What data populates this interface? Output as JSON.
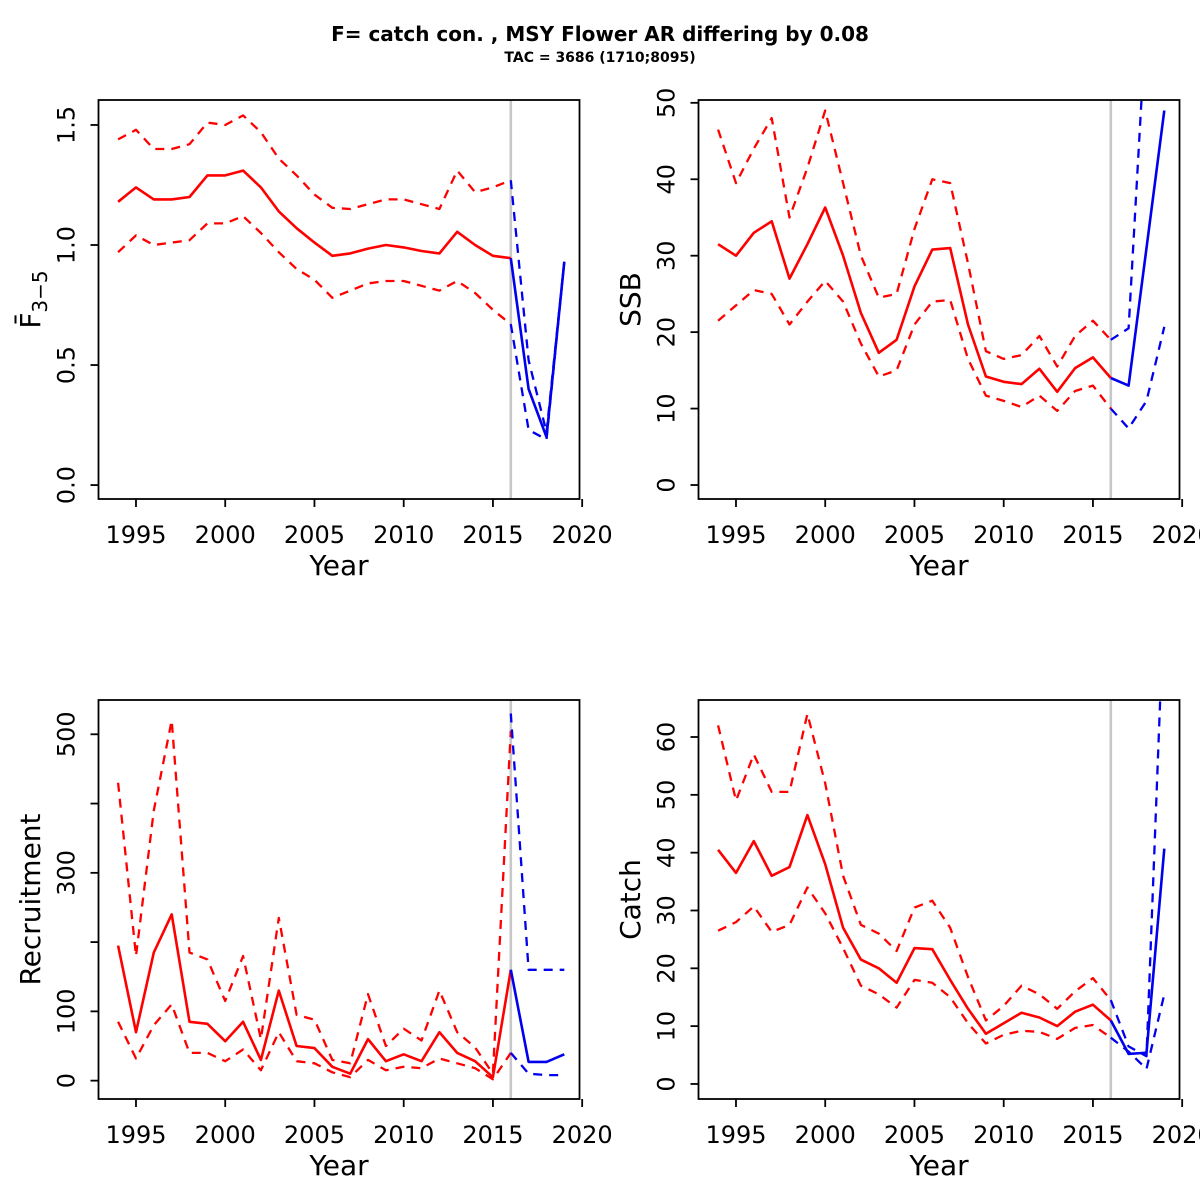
{
  "header": {
    "title": "F= catch con. , MSY Flower AR differing by 0.08",
    "subtitle": "TAC = 3686 (1710;8095)"
  },
  "colors": {
    "historical": "#FF0000",
    "forecast": "#0000EE",
    "divider": "#C8C8C8",
    "axis": "#000000"
  },
  "forecast_divider_year": 2016,
  "years": {
    "hist": [
      1994,
      1995,
      1996,
      1997,
      1998,
      1999,
      2000,
      2001,
      2002,
      2003,
      2004,
      2005,
      2006,
      2007,
      2008,
      2009,
      2010,
      2011,
      2012,
      2013,
      2014,
      2015,
      2016
    ],
    "forecast": [
      2016,
      2017,
      2018,
      2019
    ]
  },
  "chart_data": [
    {
      "key": "f-bar-3-5",
      "type": "line",
      "xlabel": "Year",
      "ylabel": {
        "text": "F",
        "overbar": true,
        "sub": "3−5"
      },
      "xlim": [
        1992.9,
        2019.85
      ],
      "ylim": [
        -0.058,
        1.604
      ],
      "grid": false,
      "xticks": [
        {
          "v": 1995,
          "l": "1995"
        },
        {
          "v": 2000,
          "l": "2000"
        },
        {
          "v": 2005,
          "l": "2005"
        },
        {
          "v": 2010,
          "l": "2010"
        },
        {
          "v": 2015,
          "l": "2015"
        },
        {
          "v": 2020,
          "l": "2020"
        }
      ],
      "yticks": [
        {
          "v": 0,
          "l": "0.0"
        },
        {
          "v": 0.5,
          "l": "0.5"
        },
        {
          "v": 1.0,
          "l": "1.0"
        },
        {
          "v": 1.5,
          "l": "1.5"
        }
      ],
      "series": [
        {
          "name": "historical-upper-ci",
          "period": "hist",
          "dash": true,
          "color": "historical",
          "values": [
            1.44,
            1.48,
            1.4,
            1.4,
            1.42,
            1.51,
            1.5,
            1.54,
            1.47,
            1.36,
            1.29,
            1.21,
            1.155,
            1.15,
            1.17,
            1.19,
            1.19,
            1.17,
            1.15,
            1.31,
            1.22,
            1.24,
            1.27
          ]
        },
        {
          "name": "historical-lower-ci",
          "period": "hist",
          "dash": true,
          "color": "historical",
          "values": [
            0.97,
            1.04,
            1.0,
            1.01,
            1.02,
            1.09,
            1.09,
            1.12,
            1.05,
            0.97,
            0.9,
            0.855,
            0.78,
            0.81,
            0.84,
            0.85,
            0.85,
            0.83,
            0.81,
            0.85,
            0.8,
            0.73,
            0.67
          ]
        },
        {
          "name": "historical-median",
          "period": "hist",
          "dash": false,
          "color": "historical",
          "values": [
            1.18,
            1.24,
            1.19,
            1.19,
            1.2,
            1.29,
            1.29,
            1.31,
            1.24,
            1.14,
            1.07,
            1.01,
            0.955,
            0.965,
            0.985,
            1.0,
            0.99,
            0.975,
            0.965,
            1.055,
            1.0,
            0.955,
            0.945
          ]
        },
        {
          "name": "forecast-upper-ci",
          "period": "forecast",
          "dash": true,
          "color": "forecast",
          "values": [
            1.27,
            0.52,
            0.22,
            0.93
          ]
        },
        {
          "name": "forecast-lower-ci",
          "period": "forecast",
          "dash": true,
          "color": "forecast",
          "values": [
            0.67,
            0.23,
            0.19,
            0.93
          ]
        },
        {
          "name": "forecast-median",
          "period": "forecast",
          "dash": false,
          "color": "forecast",
          "values": [
            0.945,
            0.4,
            0.2,
            0.93
          ]
        }
      ]
    },
    {
      "key": "ssb",
      "type": "line",
      "xlabel": "Year",
      "ylabel": {
        "text": "SSB",
        "overbar": false,
        "sub": ""
      },
      "xlim": [
        1992.9,
        2019.85
      ],
      "ylim": [
        -1.83,
        50.37
      ],
      "grid": false,
      "xticks": [
        {
          "v": 1995,
          "l": "1995"
        },
        {
          "v": 2000,
          "l": "2000"
        },
        {
          "v": 2005,
          "l": "2005"
        },
        {
          "v": 2010,
          "l": "2010"
        },
        {
          "v": 2015,
          "l": "2015"
        },
        {
          "v": 2020,
          "l": "2020"
        }
      ],
      "yticks": [
        {
          "v": 0,
          "l": "0"
        },
        {
          "v": 10,
          "l": "10"
        },
        {
          "v": 20,
          "l": "20"
        },
        {
          "v": 30,
          "l": "30"
        },
        {
          "v": 40,
          "l": "40"
        },
        {
          "v": 50,
          "l": "50"
        }
      ],
      "series": [
        {
          "name": "historical-upper-ci",
          "period": "hist",
          "dash": true,
          "color": "historical",
          "values": [
            46.5,
            39.5,
            44,
            48,
            35,
            41.5,
            49,
            39.5,
            30,
            24.5,
            25,
            33.5,
            40,
            39.5,
            29,
            17.5,
            16.5,
            17,
            19.5,
            15.5,
            19.5,
            21.5,
            19
          ]
        },
        {
          "name": "historical-lower-ci",
          "period": "hist",
          "dash": true,
          "color": "historical",
          "values": [
            21.5,
            23.5,
            25.5,
            25,
            21,
            24,
            26.7,
            24,
            18.5,
            14.2,
            15,
            21,
            24,
            24.2,
            16.5,
            11.7,
            11,
            10.2,
            11.7,
            9.7,
            12.3,
            13,
            10
          ]
        },
        {
          "name": "historical-median",
          "period": "hist",
          "dash": false,
          "color": "historical",
          "values": [
            31.5,
            30,
            33,
            34.5,
            27,
            31.5,
            36.3,
            30,
            22.5,
            17.3,
            19,
            26,
            30.8,
            31,
            21,
            14.2,
            13.5,
            13.2,
            15.2,
            12.2,
            15.3,
            16.7,
            14
          ]
        },
        {
          "name": "forecast-upper-ci",
          "period": "forecast",
          "dash": true,
          "color": "forecast",
          "values": [
            19,
            20.5,
            62,
            105
          ]
        },
        {
          "name": "forecast-lower-ci",
          "period": "forecast",
          "dash": true,
          "color": "forecast",
          "values": [
            10,
            7.4,
            11,
            20.7
          ]
        },
        {
          "name": "forecast-median",
          "period": "forecast",
          "dash": false,
          "color": "forecast",
          "values": [
            14,
            13,
            31,
            49
          ]
        }
      ]
    },
    {
      "key": "recruitment",
      "type": "line",
      "xlabel": "Year",
      "ylabel": {
        "text": "Recruitment",
        "overbar": false,
        "sub": ""
      },
      "xlim": [
        1992.9,
        2019.85
      ],
      "ylim": [
        -26.5,
        549.5
      ],
      "grid": false,
      "xticks": [
        {
          "v": 1995,
          "l": "1995"
        },
        {
          "v": 2000,
          "l": "2000"
        },
        {
          "v": 2005,
          "l": "2005"
        },
        {
          "v": 2010,
          "l": "2010"
        },
        {
          "v": 2015,
          "l": "2015"
        },
        {
          "v": 2020,
          "l": "2020"
        }
      ],
      "yticks": [
        {
          "v": 0,
          "l": "0"
        },
        {
          "v": 100,
          "l": "100"
        },
        {
          "v": 200,
          "l": ""
        },
        {
          "v": 300,
          "l": "300"
        },
        {
          "v": 400,
          "l": ""
        },
        {
          "v": 500,
          "l": "500"
        }
      ],
      "series": [
        {
          "name": "historical-upper-ci",
          "period": "hist",
          "dash": true,
          "color": "historical",
          "values": [
            430,
            180,
            390,
            520,
            185,
            175,
            115,
            180,
            60,
            235,
            95,
            88,
            30,
            25,
            125,
            50,
            75,
            58,
            130,
            70,
            48,
            10,
            505
          ]
        },
        {
          "name": "historical-lower-ci",
          "period": "hist",
          "dash": true,
          "color": "historical",
          "values": [
            85,
            32,
            80,
            110,
            40,
            40,
            28,
            45,
            15,
            70,
            28,
            25,
            12,
            5,
            30,
            15,
            20,
            18,
            32,
            25,
            18,
            2,
            40
          ]
        },
        {
          "name": "historical-median",
          "period": "hist",
          "dash": false,
          "color": "historical",
          "values": [
            195,
            70,
            185,
            240,
            85,
            82,
            57,
            85,
            30,
            130,
            50,
            47,
            20,
            10,
            60,
            28,
            38,
            28,
            70,
            40,
            28,
            5,
            160
          ]
        },
        {
          "name": "forecast-upper-ci",
          "period": "forecast",
          "dash": true,
          "color": "forecast",
          "values": [
            530,
            160,
            160,
            160
          ]
        },
        {
          "name": "forecast-lower-ci",
          "period": "forecast",
          "dash": true,
          "color": "forecast",
          "values": [
            40,
            10,
            8,
            8
          ]
        },
        {
          "name": "forecast-median",
          "period": "forecast",
          "dash": false,
          "color": "forecast",
          "values": [
            160,
            27,
            27,
            38
          ]
        }
      ]
    },
    {
      "key": "catch",
      "type": "line",
      "xlabel": "Year",
      "ylabel": {
        "text": "Catch",
        "overbar": false,
        "sub": ""
      },
      "xlim": [
        1992.9,
        2019.85
      ],
      "ylim": [
        -2.6,
        66.4
      ],
      "grid": false,
      "xticks": [
        {
          "v": 1995,
          "l": "1995"
        },
        {
          "v": 2000,
          "l": "2000"
        },
        {
          "v": 2005,
          "l": "2005"
        },
        {
          "v": 2010,
          "l": "2010"
        },
        {
          "v": 2015,
          "l": "2015"
        },
        {
          "v": 2020,
          "l": "2020"
        }
      ],
      "yticks": [
        {
          "v": 0,
          "l": "0"
        },
        {
          "v": 10,
          "l": "10"
        },
        {
          "v": 20,
          "l": "20"
        },
        {
          "v": 30,
          "l": "30"
        },
        {
          "v": 40,
          "l": "40"
        },
        {
          "v": 50,
          "l": "50"
        },
        {
          "v": 60,
          "l": "60"
        }
      ],
      "series": [
        {
          "name": "historical-upper-ci",
          "period": "hist",
          "dash": true,
          "color": "historical",
          "values": [
            62,
            49,
            57,
            50.5,
            50.5,
            64,
            52,
            36,
            27.5,
            26,
            23,
            30.5,
            31.7,
            27,
            18.5,
            11,
            13.5,
            17,
            15.5,
            13,
            16,
            18.3,
            14.5
          ]
        },
        {
          "name": "historical-lower-ci",
          "period": "hist",
          "dash": true,
          "color": "historical",
          "values": [
            26.5,
            28,
            30.7,
            26.3,
            27.5,
            34,
            29.5,
            23.5,
            17,
            15.5,
            13.2,
            18,
            17.5,
            15,
            10.5,
            7,
            8.5,
            9.2,
            9,
            7.8,
            9.7,
            10.2,
            8
          ]
        },
        {
          "name": "historical-median",
          "period": "hist",
          "dash": false,
          "color": "historical",
          "values": [
            40.5,
            36.5,
            42,
            36,
            37.5,
            46.5,
            38,
            27,
            21.5,
            20,
            17.5,
            23.5,
            23.3,
            18,
            13,
            8.7,
            10.5,
            12.3,
            11.5,
            10,
            12.5,
            13.7,
            11
          ]
        },
        {
          "name": "forecast-upper-ci",
          "period": "forecast",
          "dash": true,
          "color": "forecast",
          "values": [
            14.5,
            6.5,
            4.8,
            85
          ]
        },
        {
          "name": "forecast-lower-ci",
          "period": "forecast",
          "dash": true,
          "color": "forecast",
          "values": [
            8,
            5.6,
            2.6,
            15.5
          ]
        },
        {
          "name": "forecast-median",
          "period": "forecast",
          "dash": false,
          "color": "forecast",
          "values": [
            11,
            5.2,
            5.4,
            40.7
          ]
        }
      ]
    }
  ]
}
